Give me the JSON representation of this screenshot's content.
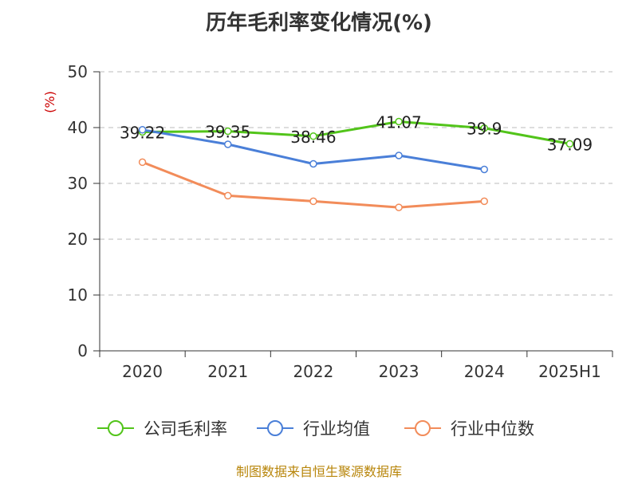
{
  "title": "历年毛利率变化情况(%)",
  "source": "制图数据来自恒生聚源数据库",
  "chart_data": {
    "type": "line",
    "title": "历年毛利率变化情况(%)",
    "ylabel": "(%)",
    "xlabel": "",
    "categories": [
      "2020",
      "2021",
      "2022",
      "2023",
      "2024",
      "2025H1"
    ],
    "ylim": [
      0,
      50
    ],
    "yticks": [
      0,
      10,
      20,
      30,
      40,
      50
    ],
    "grid": "horizontal-dashed",
    "legend_position": "bottom",
    "series": [
      {
        "name": "公司毛利率",
        "color": "#52c41a",
        "values": [
          39.22,
          39.35,
          38.46,
          41.07,
          39.9,
          37.09
        ],
        "labels": [
          "39.22",
          "39.35",
          "38.46",
          "41.07",
          "39.9",
          "37.09"
        ]
      },
      {
        "name": "行业均值",
        "color": "#4a7fd8",
        "values": [
          39.6,
          37.0,
          33.5,
          35.0,
          32.5,
          null
        ]
      },
      {
        "name": "行业中位数",
        "color": "#f28c5a",
        "values": [
          33.8,
          27.8,
          26.8,
          25.7,
          26.8,
          null
        ]
      }
    ]
  }
}
